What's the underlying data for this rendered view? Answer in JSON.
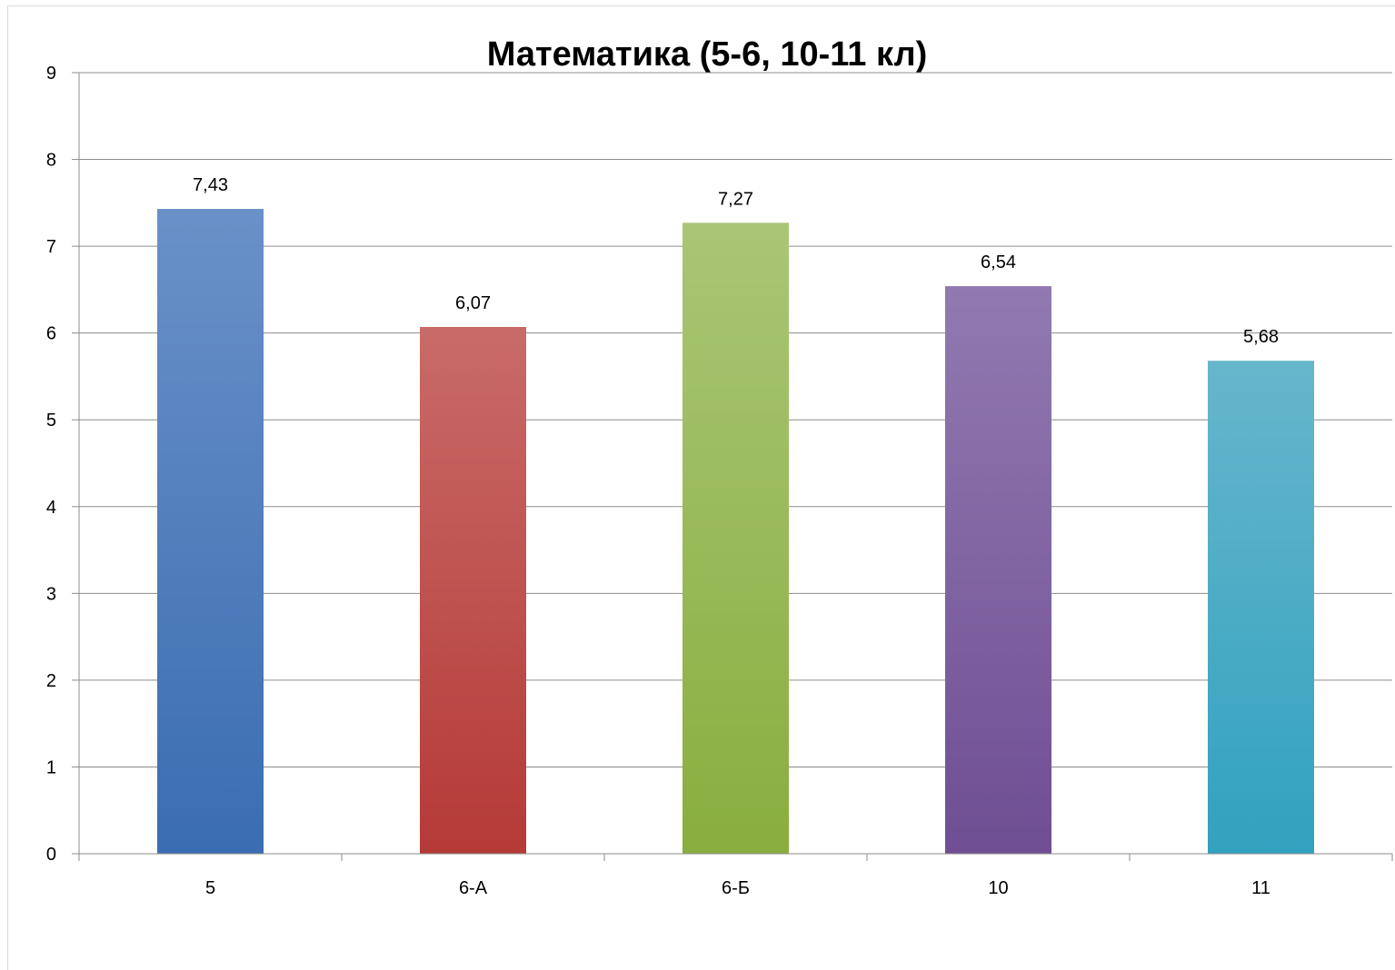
{
  "chart_data": {
    "type": "bar",
    "title": "Математика (5-6, 10-11 кл)",
    "xlabel": "",
    "ylabel": "",
    "categories": [
      "5",
      "6-А",
      "6-Б",
      "10",
      "11"
    ],
    "values": [
      7.43,
      6.07,
      7.27,
      6.54,
      5.68
    ],
    "value_labels": [
      "7,43",
      "6,07",
      "7,27",
      "6,54",
      "5,68"
    ],
    "ylim": [
      0,
      9
    ],
    "yticks": [
      "0",
      "1",
      "2",
      "3",
      "4",
      "5",
      "6",
      "7",
      "8",
      "9"
    ],
    "grid": true,
    "legend": "none",
    "colors": [
      [
        "#6a91c8",
        "#3a6db1"
      ],
      [
        "#c86b68",
        "#b53a37"
      ],
      [
        "#a9c676",
        "#89ae3e"
      ],
      [
        "#9279b0",
        "#6f4e93"
      ],
      [
        "#67b6cc",
        "#31a2bf"
      ]
    ]
  }
}
